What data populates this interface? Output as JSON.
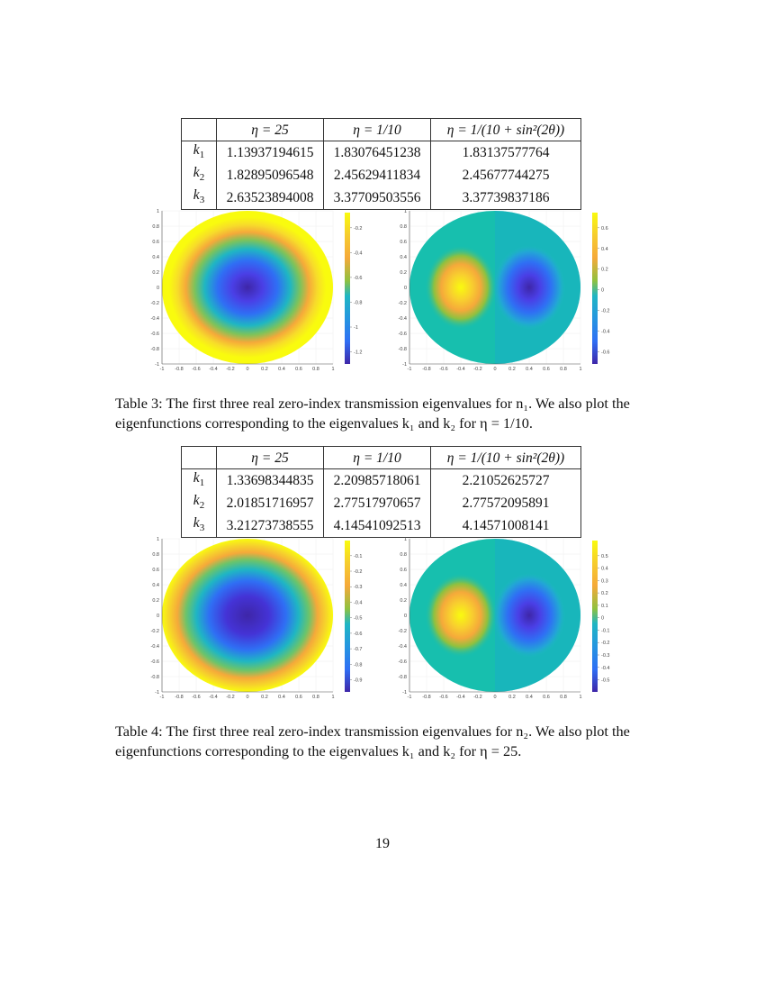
{
  "tables": [
    {
      "id": "table3",
      "headers": [
        "",
        "η = 25",
        "η = 1/10",
        "η = 1/(10 + sin²(2θ))"
      ],
      "rows": [
        {
          "label": "k",
          "sub": "1",
          "values": [
            "1.13937194615",
            "1.83076451238",
            "1.83137577764"
          ]
        },
        {
          "label": "k",
          "sub": "2",
          "values": [
            "1.82895096548",
            "2.45629411834",
            "2.45677744275"
          ]
        },
        {
          "label": "k",
          "sub": "3",
          "values": [
            "2.63523894008",
            "3.37709503556",
            "3.37739837186"
          ]
        }
      ],
      "caption": {
        "prefix": "Table 3:",
        "text": "The first three real zero-index transmission eigenvalues for n₁. We also plot the eigenfunctions corresponding to the eigenvalues k₁ and k₂ for η = 1/10."
      }
    },
    {
      "id": "table4",
      "headers": [
        "",
        "η = 25",
        "η = 1/10",
        "η = 1/(10 + sin²(2θ))"
      ],
      "rows": [
        {
          "label": "k",
          "sub": "1",
          "values": [
            "1.33698344835",
            "2.20985718061",
            "2.21052625727"
          ]
        },
        {
          "label": "k",
          "sub": "2",
          "values": [
            "2.01851716957",
            "2.77517970657",
            "2.77572095891"
          ]
        },
        {
          "label": "k",
          "sub": "3",
          "values": [
            "3.21273738555",
            "4.14541092513",
            "4.14571008141"
          ]
        }
      ],
      "caption": {
        "prefix": "Table 4:",
        "text": "The first three real zero-index transmission eigenvalues for n₂. We also plot the eigenfunctions corresponding to the eigenvalues k₁ and k₂ for η = 25."
      }
    }
  ],
  "plots": {
    "axis_ticks_x": [
      "-1",
      "-0.8",
      "-0.6",
      "-0.4",
      "-0.2",
      "0",
      "0.2",
      "0.4",
      "0.6",
      "0.8",
      "1"
    ],
    "axis_ticks_y": [
      "1",
      "0.8",
      "0.6",
      "0.4",
      "0.2",
      "0",
      "-0.2",
      "-0.4",
      "-0.6",
      "-0.8",
      "-1"
    ],
    "colormap": "parula",
    "items": [
      {
        "id": "t3_k1",
        "pattern": "radial",
        "colorbar_ticks": [
          "-0.2",
          "-0.4",
          "-0.6",
          "-0.8",
          "-1",
          "-1.2"
        ]
      },
      {
        "id": "t3_k2",
        "pattern": "dipole",
        "colorbar_ticks": [
          "0.6",
          "0.4",
          "0.2",
          "0",
          "-0.2",
          "-0.4",
          "-0.6"
        ]
      },
      {
        "id": "t4_k1",
        "pattern": "radial",
        "colorbar_ticks": [
          "-0.1",
          "-0.2",
          "-0.3",
          "-0.4",
          "-0.5",
          "-0.6",
          "-0.7",
          "-0.8",
          "-0.9"
        ]
      },
      {
        "id": "t4_k2",
        "pattern": "dipole",
        "colorbar_ticks": [
          "0.5",
          "0.4",
          "0.3",
          "0.2",
          "0.1",
          "0",
          "-0.1",
          "-0.2",
          "-0.3",
          "-0.4",
          "-0.5"
        ]
      }
    ]
  },
  "colors": {
    "parula_dark": "#3e26a8",
    "parula_blue": "#2f6ff4",
    "parula_cyan": "#1fb6c3",
    "parula_teal": "#17bfae",
    "parula_green": "#8fc13f",
    "parula_orange": "#f5a93a",
    "parula_yellow": "#f9fb0e"
  },
  "page_number": "19"
}
